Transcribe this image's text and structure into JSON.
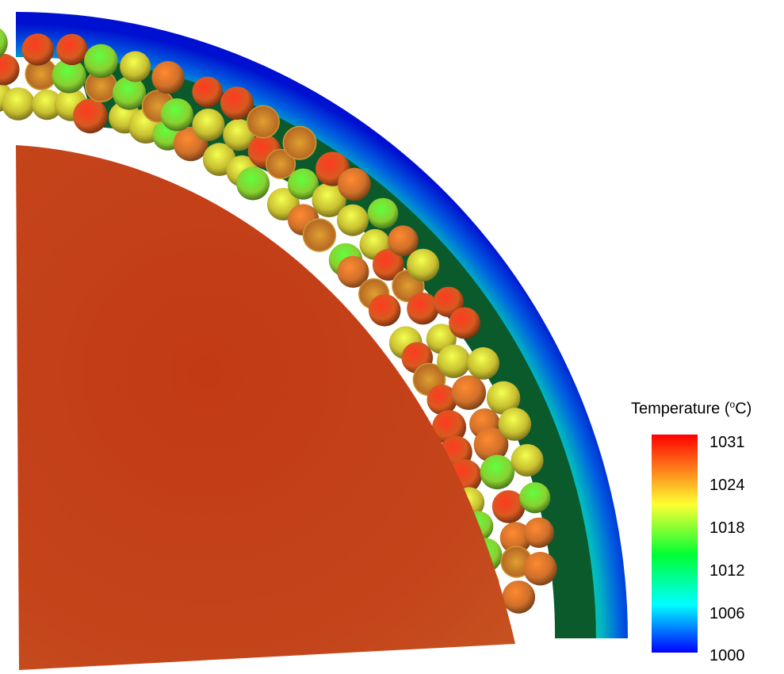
{
  "legend": {
    "title_prefix": "Temperature (",
    "title_sup": "o",
    "title_suffix": "C)",
    "ticks": [
      "1031",
      "1024",
      "1018",
      "1012",
      "1006",
      "1000"
    ],
    "min": 1000,
    "max": 1031,
    "colormap": [
      "#0000ff",
      "#00ffff",
      "#00ff33",
      "#ffff33",
      "#ff0000"
    ]
  },
  "colors": {
    "inner_core": "#c1431a",
    "gap_fill": "#0b5a2c",
    "outer_shell_inner": "#22d8a0",
    "outer_shell_outer": "#0014d8"
  },
  "particles": {
    "count_shown": "many",
    "temperature_range": [
      1016,
      1031
    ]
  }
}
